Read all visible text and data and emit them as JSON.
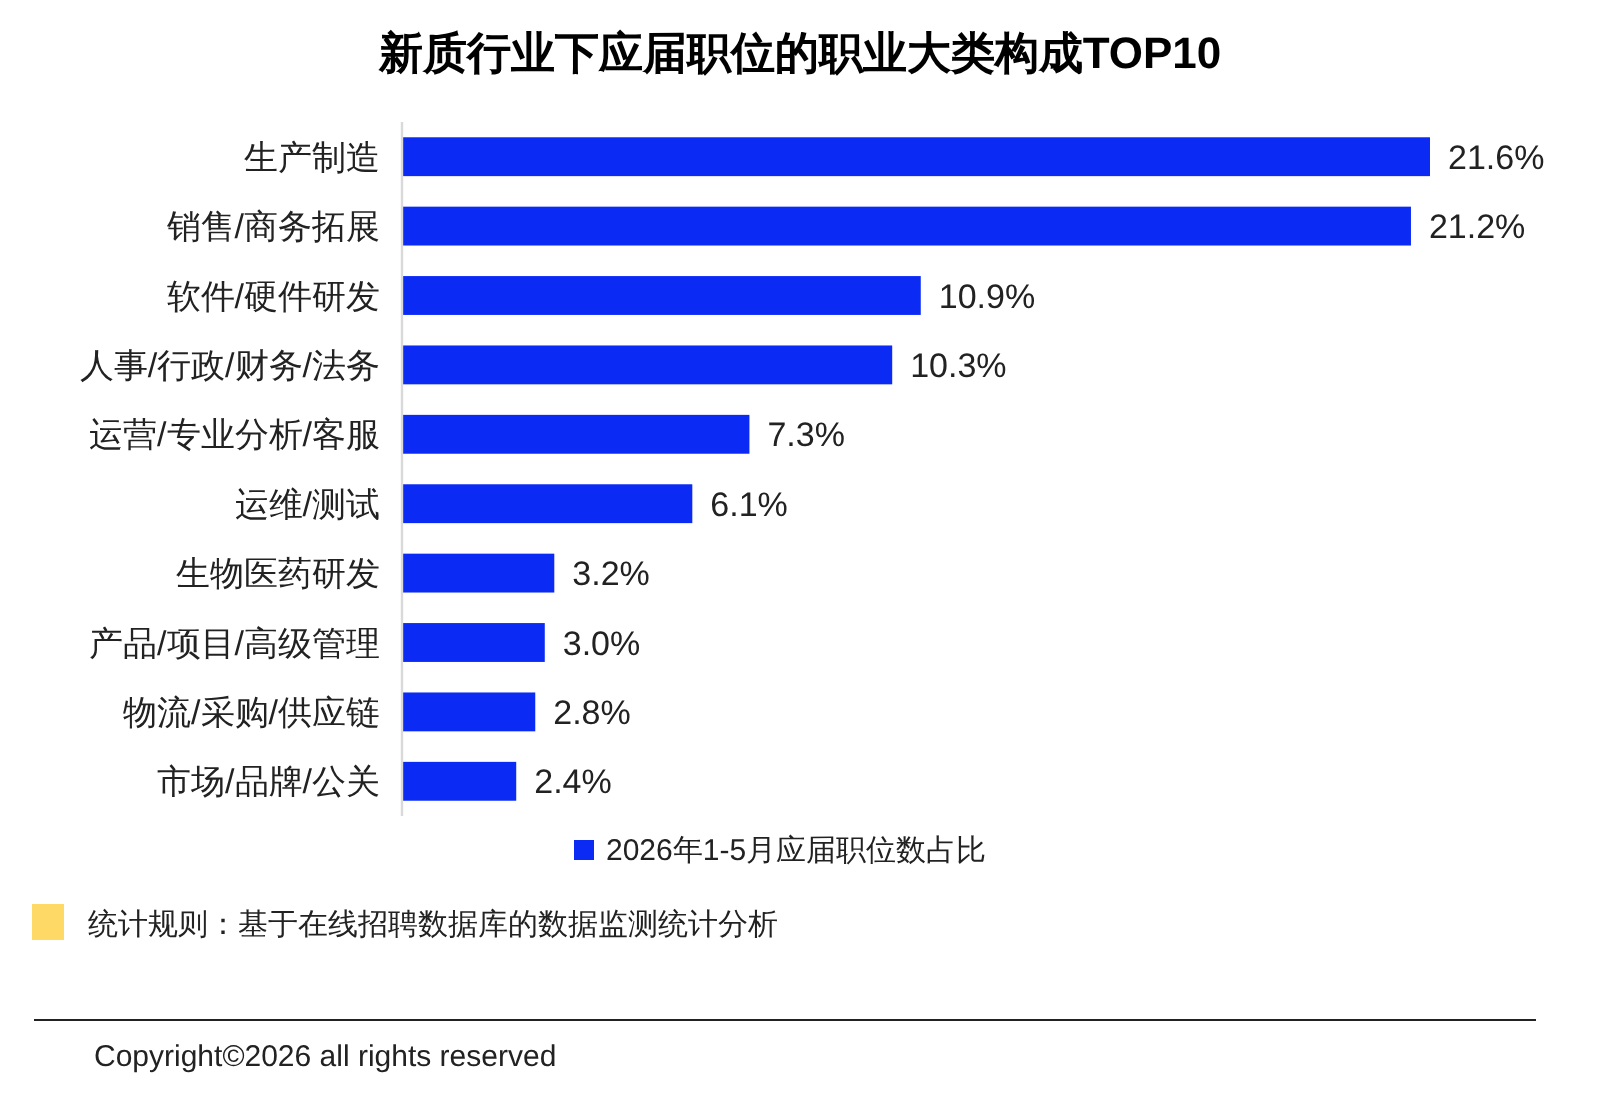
{
  "chart_data": {
    "type": "bar",
    "orientation": "horizontal",
    "title": "新质行业下应届职位的职业大类构成TOP10",
    "categories": [
      "生产制造",
      "销售/商务拓展",
      "软件/硬件研发",
      "人事/行政/财务/法务",
      "运营/专业分析/客服",
      "运维/测试",
      "生物医药研发",
      "产品/项目/高级管理",
      "物流/采购/供应链",
      "市场/品牌/公关"
    ],
    "series": [
      {
        "name": "2026年1-5月应届职位数占比",
        "color": "#0b2bf5",
        "values": [
          21.6,
          21.2,
          10.9,
          10.3,
          7.3,
          6.1,
          3.2,
          3.0,
          2.8,
          2.4
        ],
        "value_labels": [
          "21.6%",
          "21.2%",
          "10.9%",
          "10.3%",
          "7.3%",
          "6.1%",
          "3.2%",
          "3.0%",
          "2.8%",
          "2.4%"
        ]
      }
    ],
    "legend": "bottom",
    "annotations": [
      "统计规则：基于在线招聘数据库的数据监测统计分析",
      "Copyright©2026 all rights reserved"
    ]
  }
}
